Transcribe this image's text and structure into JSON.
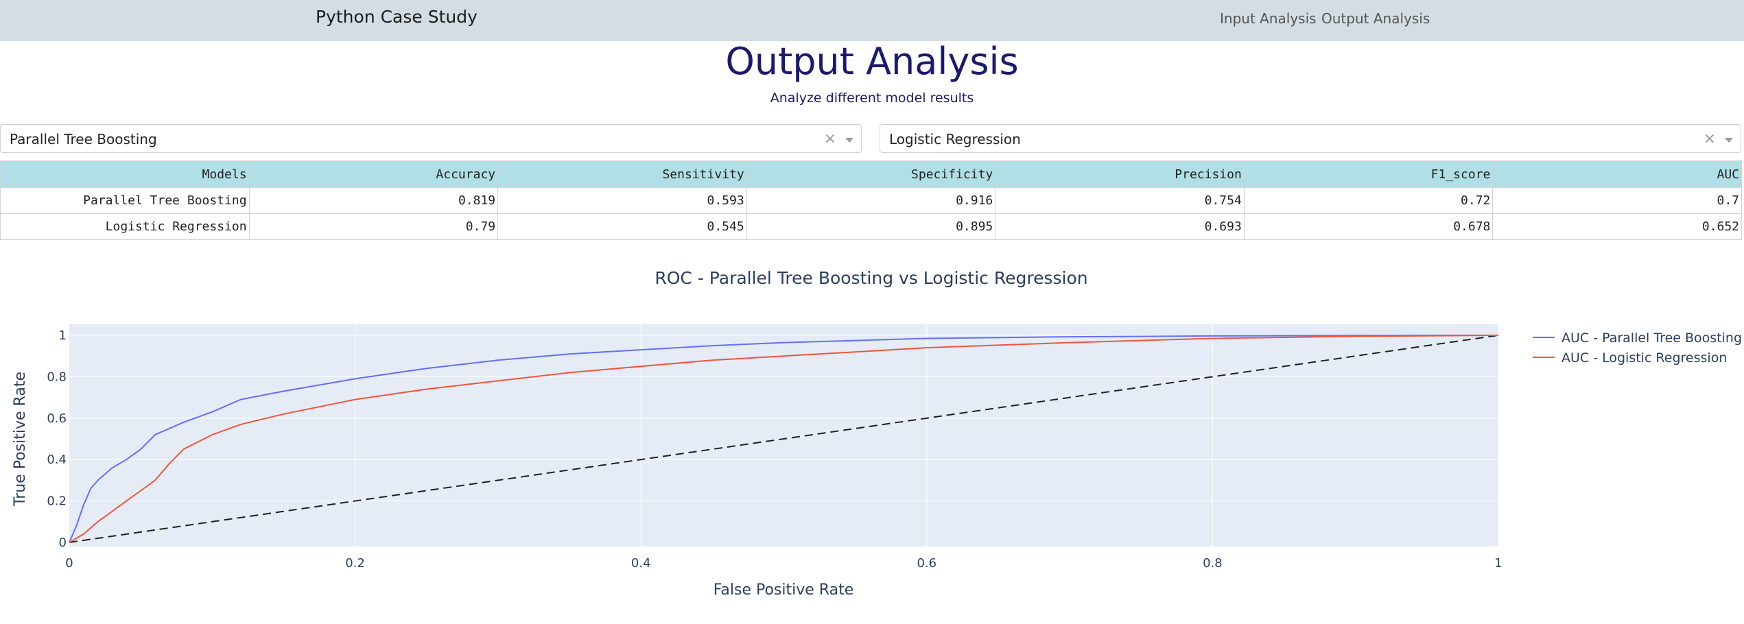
{
  "navbar": {
    "brand": "Python Case Study",
    "links": [
      "Input Analysis",
      "Output Analysis"
    ]
  },
  "page": {
    "title": "Output Analysis",
    "subtitle": "Analyze different model results"
  },
  "dropdowns": {
    "left": {
      "value": "Parallel Tree Boosting",
      "clear": "×"
    },
    "right": {
      "value": "Logistic Regression",
      "clear": "×"
    }
  },
  "table": {
    "columns": [
      "Models",
      "Accuracy",
      "Sensitivity",
      "Specificity",
      "Precision",
      "F1_score",
      "AUC"
    ],
    "rows": [
      [
        "Parallel Tree Boosting",
        "0.819",
        "0.593",
        "0.916",
        "0.754",
        "0.72",
        "0.7"
      ],
      [
        "Logistic Regression",
        "0.79",
        "0.545",
        "0.895",
        "0.693",
        "0.678",
        "0.652"
      ]
    ]
  },
  "chart_data": {
    "type": "line",
    "title": "ROC - Parallel Tree Boosting vs Logistic Regression",
    "xlabel": "False Positive Rate",
    "ylabel": "True Positive Rate",
    "xlim": [
      0,
      1
    ],
    "ylim": [
      0,
      1
    ],
    "xticks": [
      "0",
      "0.2",
      "0.4",
      "0.6",
      "0.8",
      "1"
    ],
    "yticks": [
      "0",
      "0.2",
      "0.4",
      "0.6",
      "0.8",
      "1"
    ],
    "grid": true,
    "legend_position": "right",
    "series": [
      {
        "name": "AUC - Parallel Tree Boosting",
        "color": "#636efa",
        "x": [
          0,
          0.005,
          0.01,
          0.015,
          0.02,
          0.03,
          0.04,
          0.05,
          0.06,
          0.07,
          0.08,
          0.1,
          0.12,
          0.15,
          0.2,
          0.25,
          0.3,
          0.35,
          0.4,
          0.45,
          0.5,
          0.55,
          0.6,
          0.7,
          0.8,
          0.9,
          1.0
        ],
        "y": [
          0,
          0.08,
          0.18,
          0.26,
          0.3,
          0.36,
          0.4,
          0.45,
          0.52,
          0.55,
          0.58,
          0.63,
          0.69,
          0.73,
          0.79,
          0.84,
          0.88,
          0.91,
          0.93,
          0.95,
          0.965,
          0.975,
          0.985,
          0.993,
          0.997,
          0.999,
          1.0
        ]
      },
      {
        "name": "AUC - Logistic Regression",
        "color": "#ef553b",
        "x": [
          0,
          0.01,
          0.02,
          0.03,
          0.04,
          0.05,
          0.06,
          0.07,
          0.08,
          0.1,
          0.12,
          0.15,
          0.2,
          0.25,
          0.3,
          0.35,
          0.4,
          0.45,
          0.5,
          0.55,
          0.6,
          0.7,
          0.8,
          0.9,
          1.0
        ],
        "y": [
          0,
          0.04,
          0.1,
          0.15,
          0.2,
          0.25,
          0.3,
          0.38,
          0.45,
          0.52,
          0.57,
          0.62,
          0.69,
          0.74,
          0.78,
          0.82,
          0.85,
          0.88,
          0.9,
          0.92,
          0.94,
          0.965,
          0.985,
          0.995,
          1.0
        ]
      }
    ],
    "reference_line": {
      "x": [
        0,
        1
      ],
      "y": [
        0,
        1
      ],
      "style": "dashed",
      "color": "#1f1f1f"
    }
  }
}
